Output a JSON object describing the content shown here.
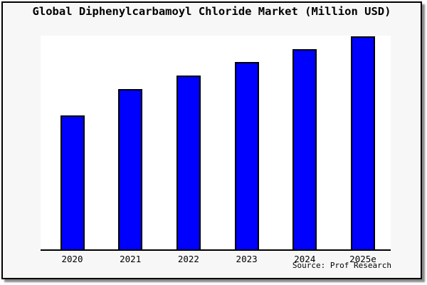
{
  "title": "Global Diphenylcarbamoyl Chloride Market (Million USD)",
  "source": "Source: Prof Research",
  "colors": {
    "bar_fill": "#0000ff",
    "bar_edge": "#000000",
    "figure_bg": "#f7f7f7",
    "plot_bg": "#ffffff",
    "frame_border": "#000000",
    "shadow": "#8a8a8a"
  },
  "chart_data": {
    "type": "bar",
    "categories": [
      "2020",
      "2021",
      "2022",
      "2023",
      "2024",
      "2025e"
    ],
    "values": [
      188,
      225,
      244,
      263,
      281,
      299
    ],
    "title": "Global Diphenylcarbamoyl Chloride Market (Million USD)",
    "xlabel": "",
    "ylabel": "",
    "ylim": [
      0,
      300
    ],
    "y_axis_labeled": false,
    "value_note": "No y-axis ticks shown; values are estimated relative bar heights in plot pixels (plot height = 300).",
    "grid": false,
    "legend": null,
    "bar_color": "#0000ff",
    "bar_edge_color": "#000000"
  }
}
